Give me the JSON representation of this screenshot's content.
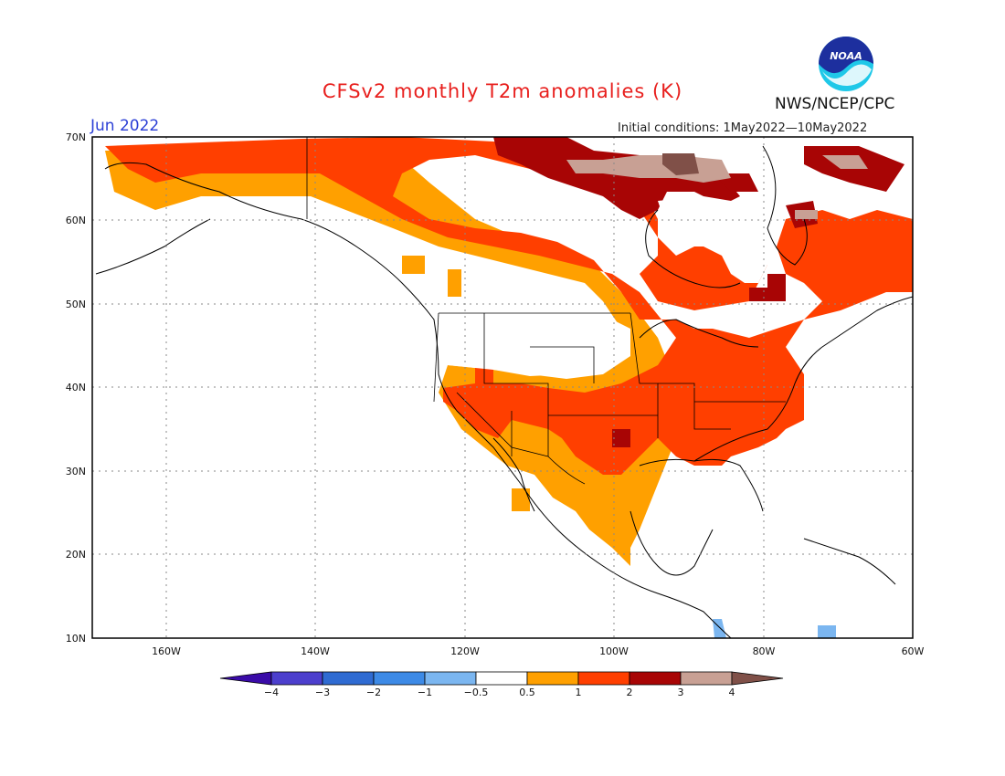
{
  "header": {
    "title": "CFSv2 monthly T2m anomalies (K)",
    "agency": "NWS/NCEP/CPC",
    "logo_text": "NOAA",
    "valid_month": "Jun 2022",
    "initial_conditions": "Initial conditions: 1May2022—10May2022"
  },
  "map": {
    "lat_labels": [
      "70N",
      "60N",
      "50N",
      "40N",
      "30N",
      "20N",
      "10N"
    ],
    "lon_labels": [
      "160W",
      "140W",
      "120W",
      "100W",
      "80W",
      "60W"
    ],
    "lat_range": [
      10,
      70
    ],
    "lon_range": [
      -170,
      -60
    ],
    "grid": true
  },
  "colorbar": {
    "tick_labels": [
      "−4",
      "−3",
      "−2",
      "−1",
      "−0.5",
      "0.5",
      "1",
      "2",
      "3",
      "4"
    ],
    "colors": [
      "#3a0ba8",
      "#4c3fcd",
      "#2f6bd2",
      "#3d8ae6",
      "#7bb6f0",
      "#ffffff",
      "#ffa000",
      "#ff3f00",
      "#a80505",
      "#c8a094",
      "#805048"
    ]
  }
}
